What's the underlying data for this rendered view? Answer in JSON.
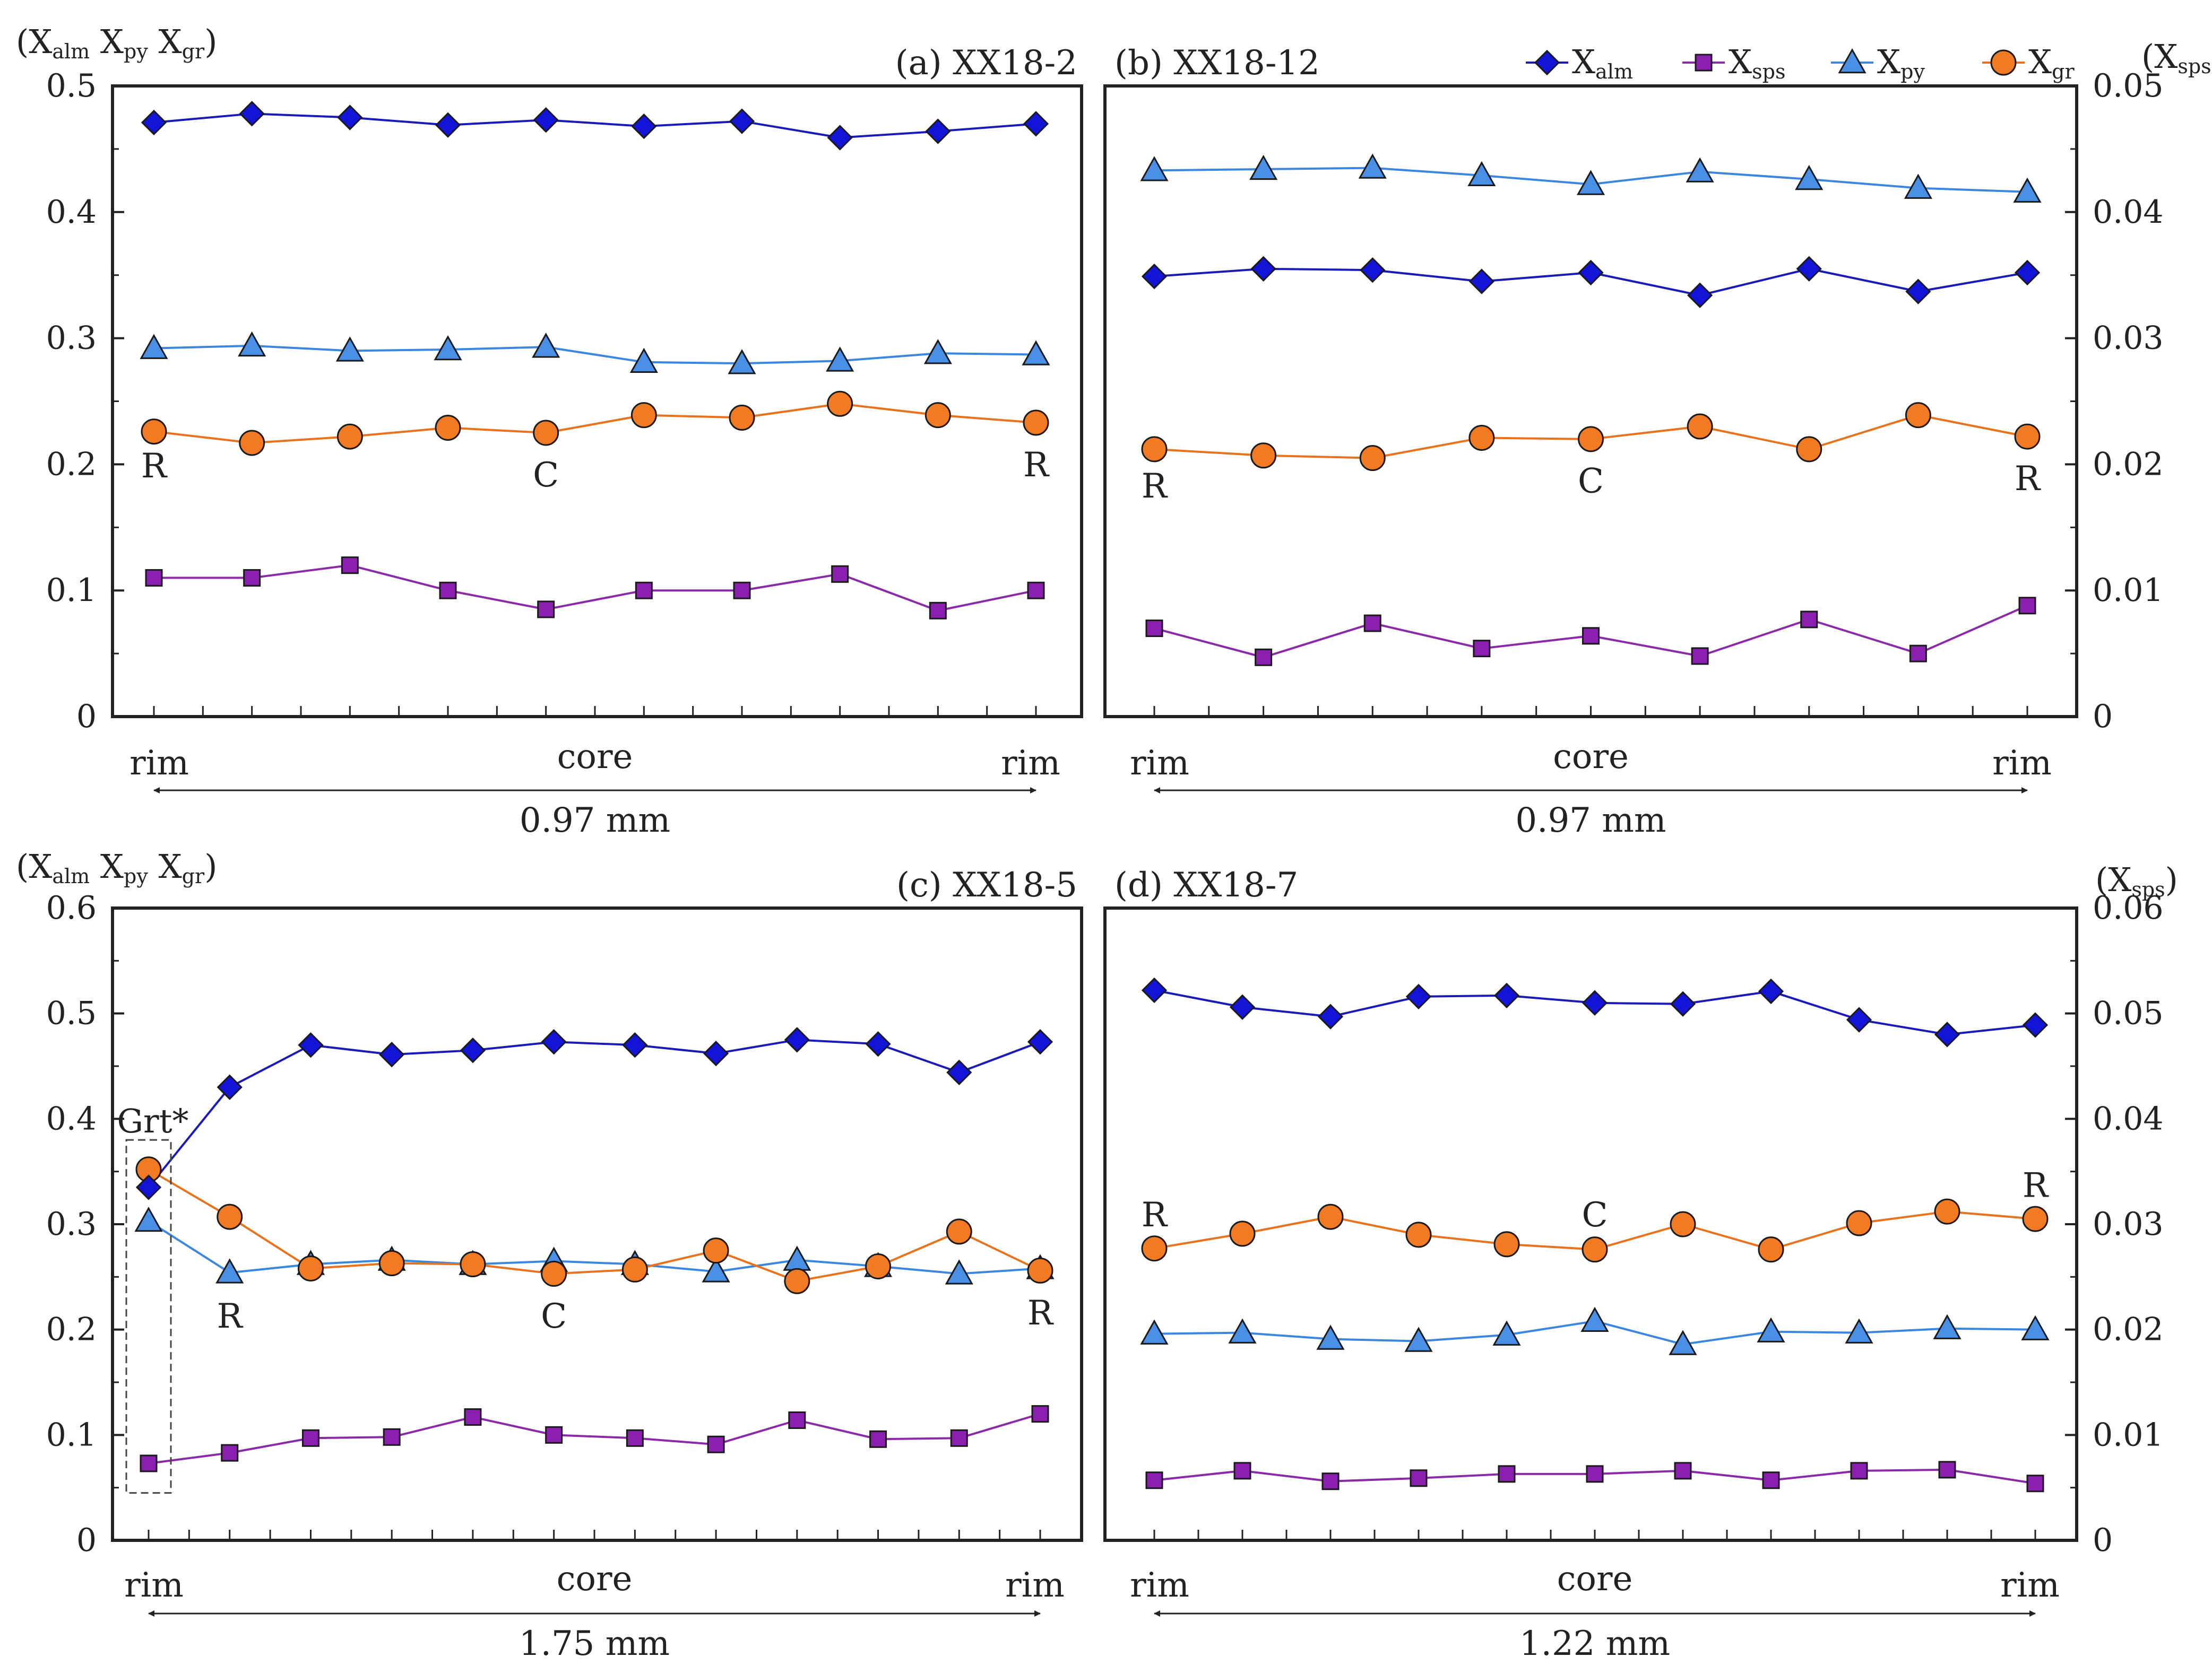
{
  "chart_data": {
    "type": "line",
    "legend": {
      "position": "top-right",
      "items": [
        {
          "key": "alm",
          "base": "X",
          "sub": "alm",
          "color": "#1010c0",
          "marker": "diamond",
          "marker_color": "#1414d8",
          "line_color": "#1a1ab8"
        },
        {
          "key": "sps",
          "base": "X",
          "sub": "sps",
          "color": "#8a1aa8",
          "marker": "square",
          "marker_color": "#8b1fb0",
          "line_color": "#8a2aa8"
        },
        {
          "key": "py",
          "base": "X",
          "sub": "py",
          "color": "#3a86e0",
          "marker": "triangle",
          "marker_color": "#4a8fe6",
          "line_color": "#3a86e0"
        },
        {
          "key": "gr",
          "base": "X",
          "sub": "gr",
          "color": "#f07a20",
          "marker": "circle",
          "marker_color": "#f27a22",
          "line_color": "#e8731c"
        }
      ],
      "right_axis_label": {
        "open": "(",
        "base": "X",
        "sub": "sps",
        "close": ")"
      }
    },
    "left_axis_label": {
      "open": "(",
      "parts": [
        {
          "base": "X",
          "sub": "alm"
        },
        {
          "base": "X",
          "sub": "py"
        },
        {
          "base": "X",
          "sub": "gr"
        }
      ],
      "close": ")"
    },
    "panels": [
      {
        "id": "a",
        "title": "(a) XX18-2",
        "ylim": [
          0,
          0.5
        ],
        "ticks": [
          "0",
          "0.1",
          "0.2",
          "0.3",
          "0.4",
          "0.5"
        ],
        "alm": [
          0.471,
          0.478,
          0.475,
          0.469,
          0.473,
          0.468,
          0.472,
          0.459,
          0.464,
          0.47
        ],
        "sps": [
          0.11,
          0.11,
          0.12,
          0.1,
          0.085,
          0.1,
          0.1,
          0.113,
          0.084,
          0.1
        ],
        "py": [
          0.292,
          0.294,
          0.29,
          0.291,
          0.293,
          0.281,
          0.28,
          0.282,
          0.288,
          0.287
        ],
        "gr": [
          0.226,
          0.217,
          0.222,
          0.229,
          0.225,
          0.239,
          0.237,
          0.248,
          0.239,
          0.233
        ],
        "annotations": [
          {
            "text": "R",
            "index": 0,
            "value": 0.198
          },
          {
            "text": "C",
            "index": 4,
            "value": 0.191
          },
          {
            "text": "R",
            "index": 9,
            "value": 0.199
          }
        ],
        "xaxis": {
          "left": "rim",
          "center": "core",
          "right": "rim",
          "scale": "0.97 mm"
        }
      },
      {
        "id": "b",
        "title": "(b) XX18-12",
        "ylim": [
          0,
          0.05
        ],
        "ticks": [
          "0",
          "0.01",
          "0.02",
          "0.03",
          "0.04",
          "0.05"
        ],
        "scale_factor": 10,
        "alm": [
          0.349,
          0.355,
          0.354,
          0.345,
          0.352,
          0.334,
          0.355,
          0.337,
          0.352
        ],
        "sps": [
          0.07,
          0.047,
          0.074,
          0.054,
          0.064,
          0.048,
          0.077,
          0.05,
          0.088
        ],
        "py": [
          0.433,
          0.434,
          0.435,
          0.429,
          0.422,
          0.432,
          0.426,
          0.419,
          0.416
        ],
        "gr": [
          0.212,
          0.207,
          0.205,
          0.221,
          0.22,
          0.23,
          0.212,
          0.239,
          0.222
        ],
        "annotations": [
          {
            "text": "R",
            "index": 0,
            "value": 0.182
          },
          {
            "text": "C",
            "index": 4,
            "value": 0.186
          },
          {
            "text": "R",
            "index": 8,
            "value": 0.188
          }
        ],
        "xaxis": {
          "left": "rim",
          "center": "core",
          "right": "rim",
          "scale": "0.97 mm"
        }
      },
      {
        "id": "c",
        "title": "(c)  XX18-5",
        "ylim": [
          0,
          0.6
        ],
        "ticks": [
          "0",
          "0.1",
          "0.2",
          "0.3",
          "0.4",
          "0.5",
          "0.6"
        ],
        "alm": [
          0.335,
          0.43,
          0.47,
          0.461,
          0.465,
          0.473,
          0.47,
          0.462,
          0.475,
          0.471,
          0.444,
          0.473
        ],
        "sps": [
          0.073,
          0.083,
          0.097,
          0.098,
          0.117,
          0.1,
          0.097,
          0.091,
          0.114,
          0.096,
          0.097,
          0.12
        ],
        "py": [
          0.303,
          0.254,
          0.262,
          0.266,
          0.262,
          0.265,
          0.262,
          0.255,
          0.266,
          0.26,
          0.253,
          0.258
        ],
        "gr": [
          0.352,
          0.307,
          0.258,
          0.263,
          0.262,
          0.253,
          0.257,
          0.275,
          0.246,
          0.26,
          0.293,
          0.256
        ],
        "annotations": [
          {
            "text": "R",
            "index": 1,
            "value": 0.212
          },
          {
            "text": "C",
            "index": 5,
            "value": 0.212
          },
          {
            "text": "R",
            "index": 11,
            "value": 0.215
          }
        ],
        "highlight": {
          "label": "Grt*",
          "index": 0
        },
        "xaxis": {
          "left": "rim",
          "center": "core",
          "right": "rim",
          "scale": "1.75 mm"
        }
      },
      {
        "id": "d",
        "title": "(d) XX18-7",
        "ylim": [
          0,
          0.06
        ],
        "ticks": [
          "0",
          "0.01",
          "0.02",
          "0.03",
          "0.04",
          "0.05",
          "0.06"
        ],
        "scale_factor": 10,
        "alm": [
          0.522,
          0.506,
          0.497,
          0.516,
          0.517,
          0.51,
          0.509,
          0.521,
          0.494,
          0.48,
          0.489
        ],
        "sps": [
          0.057,
          0.066,
          0.056,
          0.059,
          0.063,
          0.063,
          0.066,
          0.057,
          0.066,
          0.067,
          0.054
        ],
        "py": [
          0.196,
          0.197,
          0.191,
          0.189,
          0.195,
          0.208,
          0.186,
          0.198,
          0.197,
          0.201,
          0.2
        ],
        "gr": [
          0.277,
          0.291,
          0.307,
          0.29,
          0.281,
          0.276,
          0.3,
          0.276,
          0.301,
          0.312,
          0.305
        ],
        "annotations": [
          {
            "text": "R",
            "index": 0,
            "value": 0.308
          },
          {
            "text": "C",
            "index": 5,
            "value": 0.308
          },
          {
            "text": "R",
            "index": 10,
            "value": 0.336
          }
        ],
        "xaxis": {
          "left": "rim",
          "center": "core",
          "right": "rim",
          "scale": "1.22 mm"
        }
      }
    ]
  }
}
